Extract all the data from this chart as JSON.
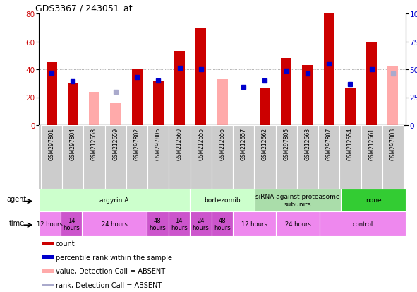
{
  "title": "GDS3367 / 243051_at",
  "samples": [
    "GSM297801",
    "GSM297804",
    "GSM212658",
    "GSM212659",
    "GSM297802",
    "GSM297806",
    "GSM212660",
    "GSM212655",
    "GSM212656",
    "GSM212657",
    "GSM212662",
    "GSM297805",
    "GSM212663",
    "GSM297807",
    "GSM212654",
    "GSM212661",
    "GSM297803"
  ],
  "count_values": [
    45,
    30,
    null,
    null,
    40,
    32,
    53,
    70,
    null,
    null,
    27,
    48,
    43,
    80,
    27,
    60,
    null
  ],
  "count_absent": [
    null,
    null,
    24,
    16,
    null,
    null,
    null,
    null,
    33,
    null,
    null,
    null,
    null,
    null,
    null,
    null,
    42
  ],
  "percentile_values": [
    47,
    39,
    null,
    null,
    43,
    40,
    51,
    50,
    null,
    34,
    40,
    49,
    46,
    55,
    37,
    50,
    null
  ],
  "percentile_absent": [
    null,
    null,
    null,
    30,
    null,
    null,
    null,
    null,
    null,
    null,
    null,
    null,
    null,
    null,
    null,
    null,
    46
  ],
  "ylim_left": [
    0,
    80
  ],
  "yticks_left": [
    0,
    20,
    40,
    60,
    80
  ],
  "yticks_right": [
    0,
    25,
    50,
    75,
    100
  ],
  "color_count": "#cc0000",
  "color_count_absent": "#ffaaaa",
  "color_pct": "#0000cc",
  "color_pct_absent": "#aaaacc",
  "agent_groups": [
    {
      "label": "argyrin A",
      "start": 0,
      "end": 7,
      "color": "#ccffcc"
    },
    {
      "label": "bortezomib",
      "start": 7,
      "end": 10,
      "color": "#ccffcc"
    },
    {
      "label": "siRNA against proteasome\nsubunits",
      "start": 10,
      "end": 14,
      "color": "#aaddaa"
    },
    {
      "label": "none",
      "start": 14,
      "end": 17,
      "color": "#33cc33"
    }
  ],
  "time_groups": [
    {
      "label": "12 hours",
      "start": 0,
      "end": 1,
      "color": "#ee88ee"
    },
    {
      "label": "14\nhours",
      "start": 1,
      "end": 2,
      "color": "#cc55cc"
    },
    {
      "label": "24 hours",
      "start": 2,
      "end": 5,
      "color": "#ee88ee"
    },
    {
      "label": "48\nhours",
      "start": 5,
      "end": 6,
      "color": "#cc55cc"
    },
    {
      "label": "14\nhours",
      "start": 6,
      "end": 7,
      "color": "#cc55cc"
    },
    {
      "label": "24\nhours",
      "start": 7,
      "end": 8,
      "color": "#cc55cc"
    },
    {
      "label": "48\nhours",
      "start": 8,
      "end": 9,
      "color": "#cc55cc"
    },
    {
      "label": "12 hours",
      "start": 9,
      "end": 11,
      "color": "#ee88ee"
    },
    {
      "label": "24 hours",
      "start": 11,
      "end": 13,
      "color": "#ee88ee"
    },
    {
      "label": "control",
      "start": 13,
      "end": 17,
      "color": "#ee88ee"
    }
  ],
  "legend_items": [
    {
      "label": "count",
      "color": "#cc0000"
    },
    {
      "label": "percentile rank within the sample",
      "color": "#0000cc"
    },
    {
      "label": "value, Detection Call = ABSENT",
      "color": "#ffaaaa"
    },
    {
      "label": "rank, Detection Call = ABSENT",
      "color": "#aaaacc"
    }
  ]
}
